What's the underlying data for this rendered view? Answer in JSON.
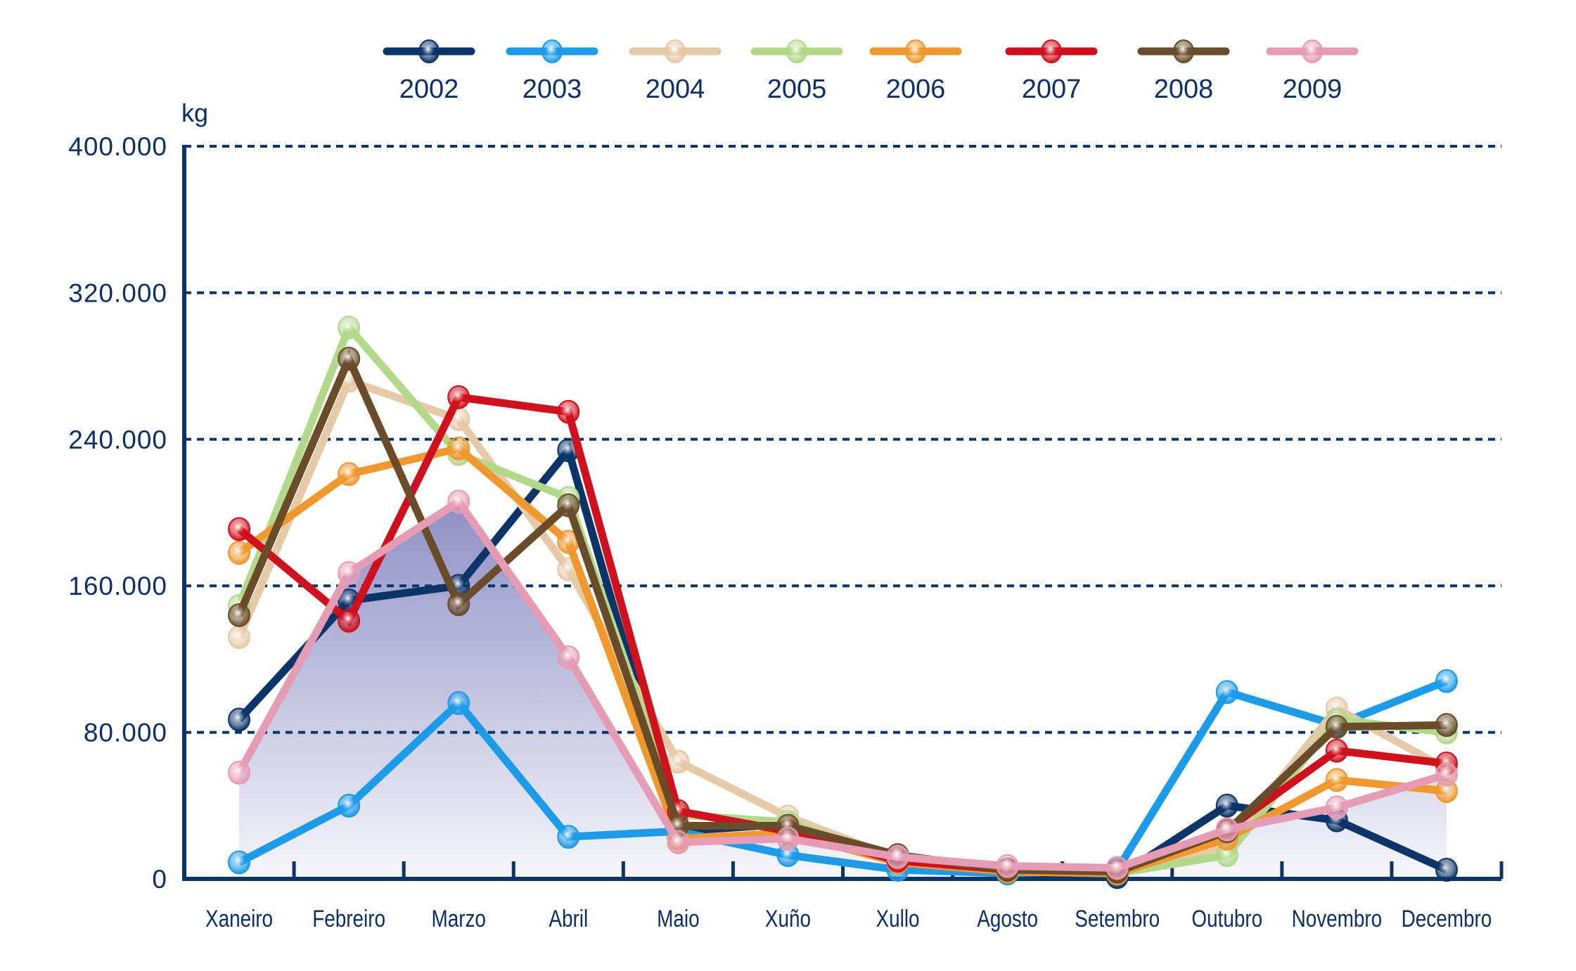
{
  "chart_data": {
    "type": "line",
    "title": "",
    "xlabel": "",
    "ylabel": "kg",
    "ylim": [
      0,
      400000
    ],
    "yticks": [
      0,
      80000,
      160000,
      240000,
      320000,
      400000
    ],
    "ytick_labels": [
      "0",
      "80.000",
      "160.000",
      "240.000",
      "320.000",
      "400.000"
    ],
    "grid": "horizontal dashed",
    "legend_position": "top",
    "categories": [
      "Xaneiro",
      "Febreiro",
      "Marzo",
      "Abril",
      "Maio",
      "Xuño",
      "Xullo",
      "Agosto",
      "Setembro",
      "Outubro",
      "Novembro",
      "Decembro"
    ],
    "area_series": "2009",
    "series": [
      {
        "name": "2002",
        "color": "#0b3468",
        "values": [
          87000,
          152000,
          160000,
          234000,
          26000,
          30000,
          9000,
          3000,
          1000,
          40000,
          32000,
          5000
        ]
      },
      {
        "name": "2003",
        "color": "#1b9be8",
        "values": [
          9000,
          40000,
          96000,
          23000,
          26000,
          13000,
          5000,
          3000,
          5000,
          102000,
          84000,
          108000
        ]
      },
      {
        "name": "2004",
        "color": "#e6c9a6",
        "values": [
          132000,
          272000,
          251000,
          169000,
          64000,
          34000,
          11000,
          5000,
          4000,
          18000,
          93000,
          60000
        ]
      },
      {
        "name": "2005",
        "color": "#b2d98a",
        "values": [
          149000,
          301000,
          232000,
          208000,
          35000,
          31000,
          10000,
          4000,
          3000,
          13000,
          87000,
          80000
        ]
      },
      {
        "name": "2006",
        "color": "#f0982d",
        "values": [
          178000,
          221000,
          235000,
          184000,
          22000,
          25000,
          9000,
          4000,
          3000,
          22000,
          54000,
          48000
        ]
      },
      {
        "name": "2007",
        "color": "#d0101c",
        "values": [
          191000,
          141000,
          263000,
          255000,
          37000,
          26000,
          10000,
          5000,
          4000,
          27000,
          70000,
          63000
        ]
      },
      {
        "name": "2008",
        "color": "#6a4c2a",
        "values": [
          144000,
          284000,
          150000,
          204000,
          29000,
          29000,
          13000,
          5000,
          4000,
          26000,
          83000,
          84000
        ]
      },
      {
        "name": "2009",
        "color": "#e69bb5",
        "values": [
          58000,
          167000,
          206000,
          121000,
          20000,
          22000,
          12000,
          7000,
          6000,
          27000,
          39000,
          57000
        ]
      }
    ]
  },
  "colors": {
    "axis": "#0b3468",
    "text": "#0b2f66",
    "area_top": "#8f8fc6",
    "area_bottom": "#f6f6fa"
  }
}
